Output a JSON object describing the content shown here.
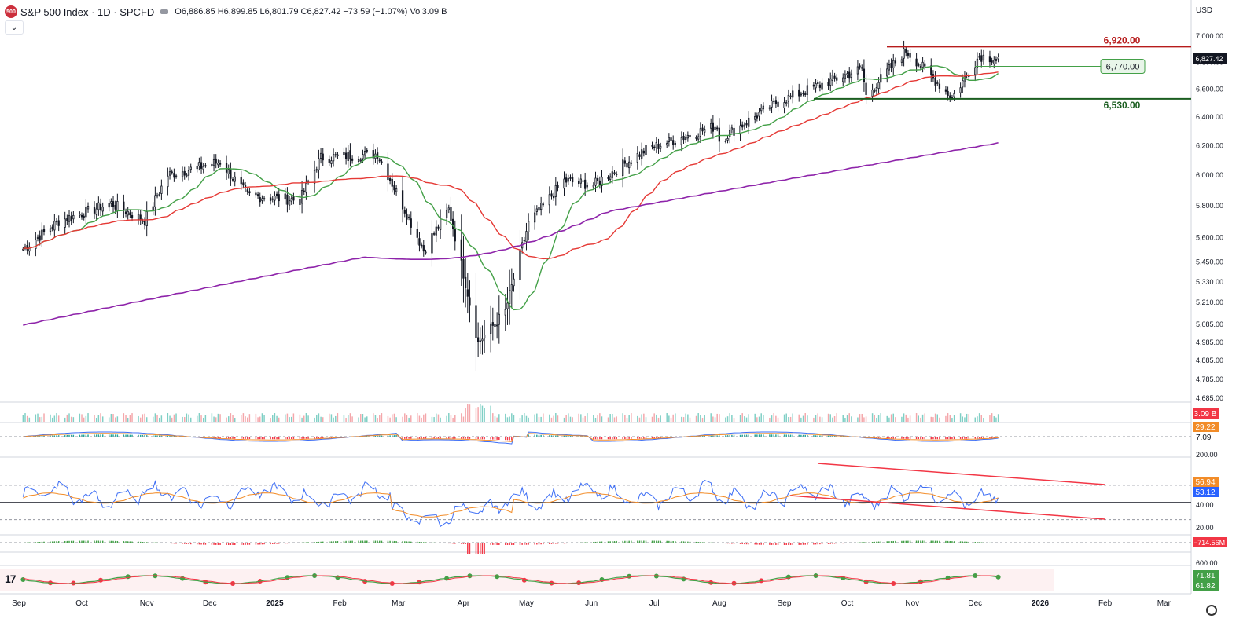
{
  "header": {
    "symbol": "S&P 500 Index · 1D · SPCFD",
    "logo_text": "500",
    "open": "O6,886.85",
    "high": "H6,899.85",
    "low": "L6,801.79",
    "close": "C6,827.42",
    "change": "−73.59 (−1.07%)",
    "volume": "Vol3.09 B",
    "currency": "USD",
    "collapse_icon": "chevron-down-icon"
  },
  "colors": {
    "red_line": "#e53935",
    "green_line": "#43a047",
    "purple_line": "#8e24aa",
    "resistance": "#b71c1c",
    "support": "#1b5e20",
    "rsi": "#3d6ef5",
    "rsi_ma": "#f28c28",
    "channel": "#f23645"
  },
  "chart_data": [
    {
      "type": "candlestick",
      "panel": "price",
      "x_ticks": [
        "Sep",
        "Oct",
        "Nov",
        "Dec",
        "2025",
        "Feb",
        "Mar",
        "Apr",
        "May",
        "Jun",
        "Jul",
        "Aug",
        "Sep",
        "Oct",
        "Nov",
        "Dec",
        "2026",
        "Feb",
        "Mar"
      ],
      "y_ticks": [
        "7,000.00",
        "6,800.00",
        "6,600.00",
        "6,400.00",
        "6,200.00",
        "6,000.00",
        "5,800.00",
        "5,600.00",
        "5,450.00",
        "5,330.00",
        "5,210.00",
        "5,085.00",
        "4,985.00",
        "4,885.00",
        "4,785.00",
        "4,685.00"
      ],
      "y_scale": "log",
      "ylim": [
        4685,
        7050
      ],
      "last_price_label": "6,827.42",
      "series_close_anchors": [
        {
          "x": "2024-09-03",
          "y": 5528
        },
        {
          "x": "2024-09-20",
          "y": 5702
        },
        {
          "x": "2024-10-15",
          "y": 5815
        },
        {
          "x": "2024-10-31",
          "y": 5705
        },
        {
          "x": "2024-11-11",
          "y": 6001
        },
        {
          "x": "2024-12-06",
          "y": 6090
        },
        {
          "x": "2024-12-19",
          "y": 5867
        },
        {
          "x": "2025-01-13",
          "y": 5836
        },
        {
          "x": "2025-01-23",
          "y": 6118
        },
        {
          "x": "2025-02-19",
          "y": 6144
        },
        {
          "x": "2025-03-13",
          "y": 5521
        },
        {
          "x": "2025-03-25",
          "y": 5776
        },
        {
          "x": "2025-04-08",
          "y": 4982
        },
        {
          "x": "2025-04-21",
          "y": 5158
        },
        {
          "x": "2025-05-02",
          "y": 5686
        },
        {
          "x": "2025-05-19",
          "y": 5963
        },
        {
          "x": "2025-06-02",
          "y": 5935
        },
        {
          "x": "2025-06-27",
          "y": 6173
        },
        {
          "x": "2025-07-31",
          "y": 6339
        },
        {
          "x": "2025-08-01",
          "y": 6238
        },
        {
          "x": "2025-08-28",
          "y": 6502
        },
        {
          "x": "2025-10-08",
          "y": 6753
        },
        {
          "x": "2025-10-10",
          "y": 6552
        },
        {
          "x": "2025-10-29",
          "y": 6890
        },
        {
          "x": "2025-11-20",
          "y": 6538
        },
        {
          "x": "2025-12-03",
          "y": 6850
        },
        {
          "x": "2025-12-12",
          "y": 6827
        }
      ],
      "moving_averages": [
        {
          "name": "",
          "color_key": "green_line"
        },
        {
          "name": "",
          "color_key": "red_line"
        },
        {
          "name": "",
          "color_key": "purple_line"
        }
      ],
      "horizontal_lines": [
        {
          "label": "6,920.00",
          "value": 6920,
          "color_key": "resistance"
        },
        {
          "label": "6,770.00",
          "value": 6770,
          "color_key": "green_line"
        },
        {
          "label": "6,530.00",
          "value": 6530,
          "color_key": "support"
        }
      ]
    },
    {
      "type": "bar",
      "panel": "volume",
      "label": "3.09 B"
    },
    {
      "type": "histogram",
      "panel": "macd",
      "labels": [
        "29.22",
        "7.09"
      ]
    },
    {
      "type": "line",
      "panel": "rsi",
      "y_ticks": [
        "200.00",
        "40.00",
        "20.00"
      ],
      "labels": [
        "56.94",
        "53.12"
      ],
      "ylim": [
        15,
        100
      ]
    },
    {
      "type": "histogram",
      "panel": "momentum",
      "labels": [
        "−714.56M",
        "600.00"
      ]
    },
    {
      "type": "line",
      "panel": "stochastic",
      "labels": [
        "71.81",
        "61.82"
      ]
    }
  ]
}
